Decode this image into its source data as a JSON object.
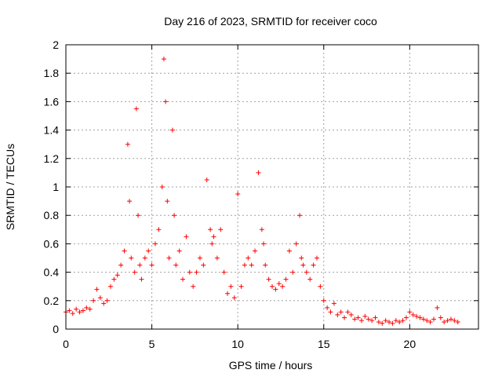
{
  "chart_data": {
    "type": "scatter",
    "title": "Day 216 of 2023, SRMTID for receiver coco",
    "xlabel": "GPS time / hours",
    "ylabel": "SRMTID / TECUs",
    "xlim": [
      0,
      24
    ],
    "ylim": [
      0,
      2
    ],
    "xticks": [
      0,
      5,
      10,
      15,
      20
    ],
    "yticks": [
      0,
      0.2,
      0.4,
      0.6,
      0.8,
      1,
      1.2,
      1.4,
      1.6,
      1.8,
      2
    ],
    "xtick_labels": [
      "0",
      "5",
      "10",
      "15",
      "20"
    ],
    "ytick_labels": [
      "0",
      "0.2",
      "0.4",
      "0.6",
      "0.8",
      "1",
      "1.2",
      "1.4",
      "1.6",
      "1.8",
      "2"
    ],
    "grid": true,
    "marker": "+",
    "color": "#ff0000",
    "x": [
      0.0,
      0.2,
      0.4,
      0.6,
      0.8,
      1.0,
      1.2,
      1.4,
      1.6,
      1.8,
      2.0,
      2.2,
      2.4,
      2.6,
      2.8,
      3.0,
      3.2,
      3.4,
      3.6,
      3.7,
      3.8,
      4.0,
      4.1,
      4.2,
      4.3,
      4.4,
      4.6,
      4.8,
      5.0,
      5.2,
      5.4,
      5.6,
      5.7,
      5.8,
      5.9,
      6.0,
      6.2,
      6.3,
      6.4,
      6.6,
      6.8,
      7.0,
      7.2,
      7.4,
      7.6,
      7.8,
      8.0,
      8.2,
      8.4,
      8.5,
      8.6,
      8.8,
      9.0,
      9.2,
      9.4,
      9.6,
      9.8,
      10.0,
      10.2,
      10.4,
      10.6,
      10.8,
      11.0,
      11.2,
      11.4,
      11.5,
      11.6,
      11.8,
      12.0,
      12.2,
      12.4,
      12.6,
      12.8,
      13.0,
      13.2,
      13.4,
      13.6,
      13.7,
      13.8,
      14.0,
      14.2,
      14.4,
      14.6,
      14.8,
      15.0,
      15.2,
      15.4,
      15.6,
      15.8,
      16.0,
      16.2,
      16.4,
      16.6,
      16.8,
      17.0,
      17.2,
      17.4,
      17.6,
      17.8,
      18.0,
      18.2,
      18.4,
      18.6,
      18.8,
      19.0,
      19.2,
      19.4,
      19.6,
      19.8,
      20.0,
      20.2,
      20.4,
      20.6,
      20.8,
      21.0,
      21.2,
      21.4,
      21.6,
      21.8,
      22.0,
      22.2,
      22.4,
      22.6,
      22.8
    ],
    "values": [
      0.12,
      0.13,
      0.11,
      0.14,
      0.12,
      0.13,
      0.15,
      0.14,
      0.2,
      0.28,
      0.22,
      0.18,
      0.2,
      0.3,
      0.35,
      0.38,
      0.45,
      0.55,
      1.3,
      0.9,
      0.5,
      0.4,
      1.55,
      0.8,
      0.45,
      0.35,
      0.5,
      0.55,
      0.45,
      0.6,
      0.7,
      1.0,
      1.9,
      1.6,
      0.9,
      0.5,
      1.4,
      0.8,
      0.45,
      0.55,
      0.35,
      0.65,
      0.4,
      0.3,
      0.4,
      0.5,
      0.45,
      1.05,
      0.7,
      0.6,
      0.65,
      0.5,
      0.7,
      0.4,
      0.25,
      0.3,
      0.22,
      0.95,
      0.3,
      0.45,
      0.5,
      0.45,
      0.55,
      1.1,
      0.7,
      0.6,
      0.45,
      0.35,
      0.3,
      0.28,
      0.32,
      0.3,
      0.35,
      0.55,
      0.4,
      0.6,
      0.8,
      0.5,
      0.45,
      0.4,
      0.35,
      0.45,
      0.5,
      0.3,
      0.2,
      0.15,
      0.12,
      0.18,
      0.1,
      0.12,
      0.08,
      0.12,
      0.1,
      0.07,
      0.08,
      0.06,
      0.09,
      0.07,
      0.06,
      0.08,
      0.05,
      0.04,
      0.06,
      0.05,
      0.04,
      0.06,
      0.05,
      0.06,
      0.08,
      0.12,
      0.1,
      0.09,
      0.08,
      0.07,
      0.06,
      0.05,
      0.07,
      0.15,
      0.08,
      0.05,
      0.06,
      0.07,
      0.06,
      0.05
    ]
  }
}
